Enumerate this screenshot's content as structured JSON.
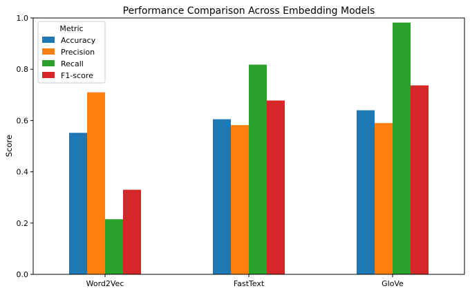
{
  "chart_data": {
    "type": "bar",
    "title": "Performance Comparison Across Embedding Models",
    "xlabel": "",
    "ylabel": "Score",
    "ylim": [
      0,
      1.0
    ],
    "yticks": [
      "0.0",
      "0.2",
      "0.4",
      "0.6",
      "0.8",
      "1.0"
    ],
    "categories": [
      "Word2Vec",
      "FastText",
      "GloVe"
    ],
    "series": [
      {
        "name": "Accuracy",
        "color": "#1f77b4",
        "values": [
          0.552,
          0.605,
          0.64
        ]
      },
      {
        "name": "Precision",
        "color": "#ff7f0e",
        "values": [
          0.71,
          0.582,
          0.59
        ]
      },
      {
        "name": "Recall",
        "color": "#2ca02c",
        "values": [
          0.215,
          0.818,
          0.982
        ]
      },
      {
        "name": "F1-score",
        "color": "#d62728",
        "values": [
          0.33,
          0.678,
          0.737
        ]
      }
    ],
    "legend": {
      "title": "Metric",
      "placement": "top-left"
    },
    "grid": false
  }
}
